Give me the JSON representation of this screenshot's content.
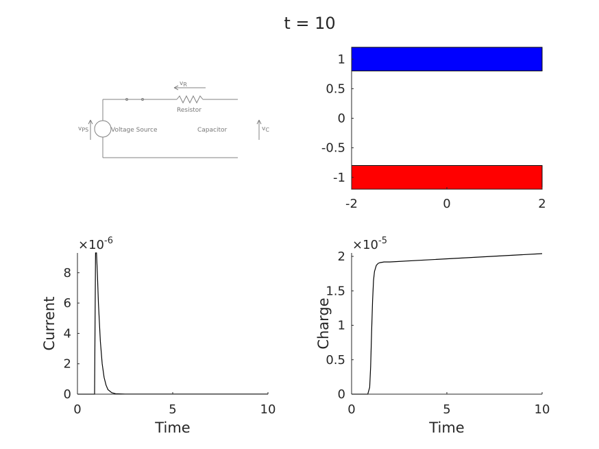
{
  "figure": {
    "title": "t = 10"
  },
  "circuit": {
    "labels": {
      "vr": "v",
      "vr_sub": "R",
      "resistor": "Resistor",
      "vps": "v",
      "vps_sub": "PS",
      "source": "Voltage Source",
      "capacitor": "Capacitor",
      "vc": "v",
      "vc_sub": "C"
    }
  },
  "chart_data": [
    {
      "type": "bar",
      "orientation": "horizontal",
      "title": "",
      "xlim": [
        -2,
        2
      ],
      "ylim": [
        -1.2,
        1.2
      ],
      "xticks": [
        "-2",
        "0",
        "2"
      ],
      "yticks": [
        "1",
        "0.5",
        "0",
        "-0.5",
        "-1"
      ],
      "bars": [
        {
          "y": 1,
          "x_from": -2,
          "x_to": 2,
          "height": 0.4,
          "color": "#0000ff"
        },
        {
          "y": -1,
          "x_from": -2,
          "x_to": 2,
          "height": 0.4,
          "color": "#ff0000"
        }
      ]
    },
    {
      "type": "line",
      "xlabel": "Time",
      "ylabel": "Current",
      "xlim": [
        0,
        10
      ],
      "ylim": [
        0,
        9.3e-06
      ],
      "exponent_label": "×10",
      "exponent": "-6",
      "xticks": [
        "0",
        "5",
        "10"
      ],
      "yticks": [
        "0",
        "2",
        "4",
        "6",
        "8"
      ],
      "series": [
        {
          "x": [
            0,
            0.9,
            0.95,
            1.0,
            1.05,
            1.1,
            1.2,
            1.3,
            1.4,
            1.5,
            1.6,
            1.8,
            2.0,
            2.5,
            3,
            5,
            10
          ],
          "y": [
            0,
            0,
            9.3e-06,
            9.3e-06,
            7.8e-06,
            6e-06,
            3.5e-06,
            2e-06,
            1.1e-06,
            6e-07,
            3e-07,
            1e-07,
            3e-08,
            1e-08,
            5e-09,
            4e-09,
            3e-09
          ]
        }
      ]
    },
    {
      "type": "line",
      "xlabel": "Time",
      "ylabel": "Charge",
      "xlim": [
        0,
        10
      ],
      "ylim": [
        0,
        2.05e-05
      ],
      "exponent_label": "×10",
      "exponent": "-5",
      "xticks": [
        "0",
        "5",
        "10"
      ],
      "yticks": [
        "0",
        "0.5",
        "1",
        "1.5",
        "2"
      ],
      "series": [
        {
          "x": [
            0,
            0.85,
            0.95,
            1.0,
            1.05,
            1.1,
            1.15,
            1.2,
            1.3,
            1.4,
            1.5,
            1.7,
            2.0,
            10
          ],
          "y": [
            0,
            0,
            1e-06,
            4e-06,
            9e-06,
            1.35e-05,
            1.65e-05,
            1.78e-05,
            1.87e-05,
            1.9e-05,
            1.91e-05,
            1.92e-05,
            1.92e-05,
            2.04e-05
          ]
        }
      ]
    }
  ]
}
